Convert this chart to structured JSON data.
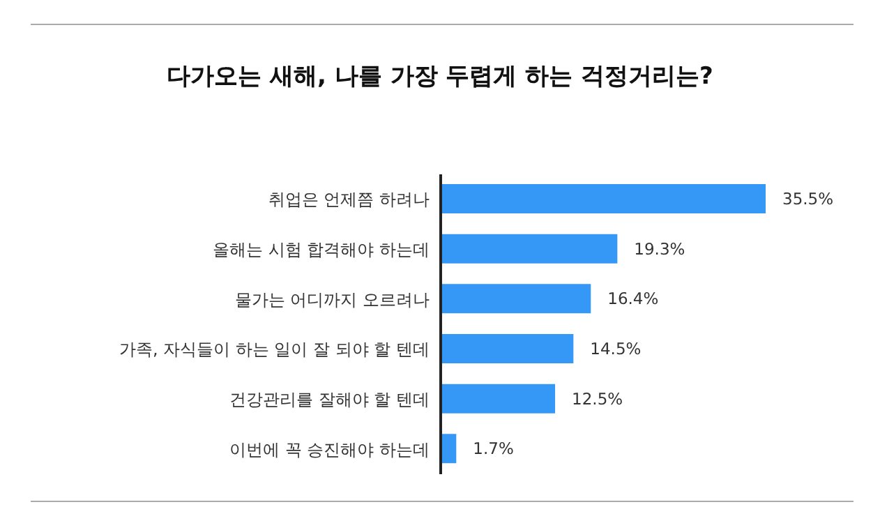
{
  "chart_data": {
    "type": "bar",
    "orientation": "horizontal",
    "title": "다가오는 새해, 나를 가장 두렵게 하는 걱정거리는?",
    "categories": [
      "취업은 언제쯤 하려나",
      "올해는 시험 합격해야 하는데",
      "물가는 어디까지 오르려나",
      "가족, 자식들이 하는 일이 잘 되야 할 텐데",
      "건강관리를 잘해야 할 텐데",
      "이번에 꼭 승진해야 하는데"
    ],
    "values": [
      35.5,
      19.3,
      16.4,
      14.5,
      12.5,
      1.7
    ],
    "value_labels": [
      "35.5%",
      "19.3%",
      "16.4%",
      "14.5%",
      "12.5%",
      "1.7%"
    ],
    "color": "#3598f7"
  }
}
